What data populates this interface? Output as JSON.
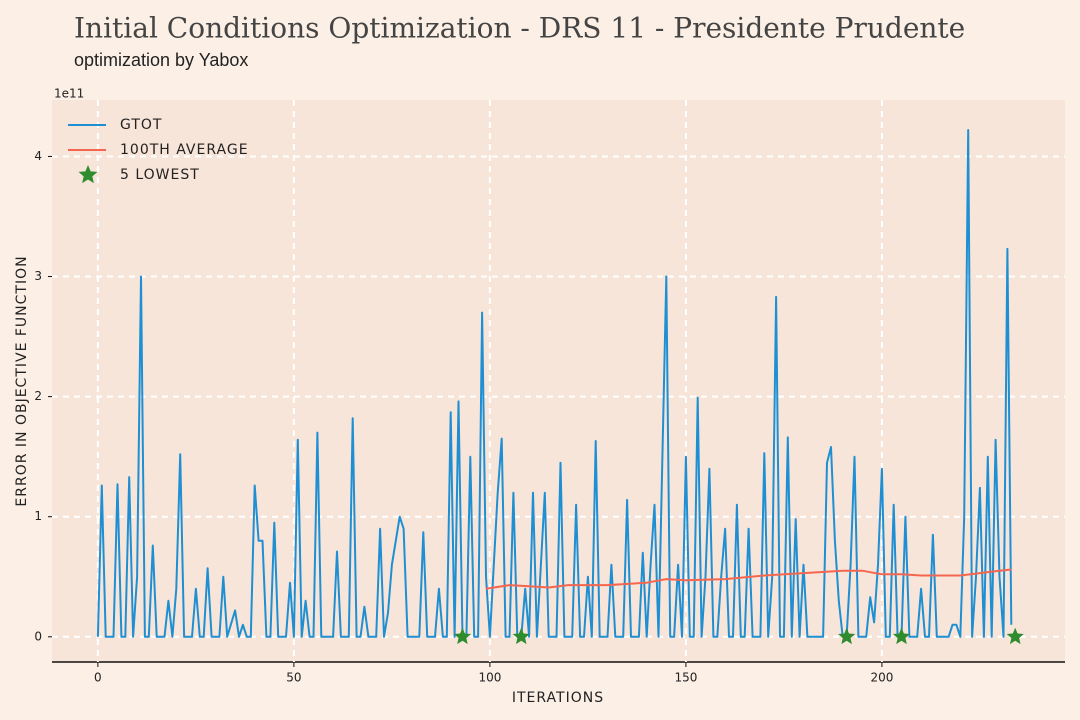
{
  "chart_data": {
    "type": "line",
    "title": "Initial Conditions Optimization - DRS 11 - Presidente Prudente",
    "subtitle": "optimization by Yabox",
    "xlabel": "ITERATIONS",
    "ylabel": "ERROR IN OBJECTIVE FUNCTION",
    "y_offset_label": "1e11",
    "xlim": [
      -11.7,
      246.7
    ],
    "ylim": [
      -0.21,
      4.47
    ],
    "xticks": [
      0,
      50,
      100,
      150,
      200
    ],
    "yticks": [
      0,
      1,
      2,
      3,
      4
    ],
    "grid": true,
    "legend": "upper left",
    "series": [
      {
        "name": "GTOT",
        "color": "#1f8fd3",
        "mode": "line",
        "x": [
          0,
          1,
          2,
          4,
          5,
          6,
          7,
          8,
          9,
          10,
          11,
          12,
          13,
          14,
          15,
          17,
          18,
          19,
          20,
          21,
          22,
          24,
          25,
          26,
          27,
          28,
          29,
          31,
          32,
          33,
          35,
          36,
          37,
          38,
          39,
          40,
          41,
          42,
          43,
          44,
          45,
          46,
          48,
          49,
          50,
          51,
          52,
          53,
          54,
          55,
          56,
          57,
          59,
          60,
          61,
          62,
          64,
          65,
          66,
          67,
          68,
          69,
          71,
          72,
          73,
          74,
          75,
          76,
          77,
          78,
          79,
          82,
          83,
          84,
          86,
          87,
          88,
          89,
          90,
          91,
          92,
          93,
          94,
          95,
          96,
          97,
          98,
          99,
          100,
          101,
          102,
          103,
          104,
          105,
          106,
          107,
          108,
          109,
          110,
          111,
          112,
          113,
          114,
          115,
          117,
          118,
          119,
          121,
          122,
          123,
          124,
          125,
          126,
          127,
          128,
          130,
          131,
          132,
          134,
          135,
          136,
          138,
          139,
          140,
          141,
          142,
          143,
          144,
          145,
          146,
          147,
          148,
          149,
          150,
          151,
          152,
          153,
          154,
          155,
          156,
          157,
          158,
          159,
          160,
          161,
          162,
          163,
          164,
          165,
          166,
          167,
          169,
          170,
          171,
          172,
          173,
          174,
          175,
          176,
          177,
          178,
          179,
          180,
          181,
          185,
          186,
          187,
          188,
          189,
          190,
          191,
          192,
          193,
          194,
          196,
          197,
          198,
          199,
          200,
          201,
          202,
          203,
          204,
          205,
          206,
          207,
          209,
          210,
          211,
          212,
          213,
          214,
          216,
          217,
          218,
          219,
          220,
          221,
          222,
          223,
          224,
          225,
          226,
          227,
          228,
          229,
          230,
          231,
          232,
          233
        ],
        "values": [
          0,
          1.26,
          0,
          0,
          1.27,
          0,
          0,
          1.33,
          0,
          0.5,
          3.0,
          0,
          0,
          0.76,
          0,
          0,
          0.3,
          0,
          0.4,
          1.52,
          0,
          0,
          0.4,
          0,
          0,
          0.57,
          0,
          0,
          0.5,
          0,
          0.22,
          0,
          0.1,
          0,
          0,
          1.26,
          0.8,
          0.8,
          0,
          0,
          0.95,
          0,
          0,
          0.45,
          0,
          1.64,
          0,
          0.3,
          0,
          0,
          1.7,
          0,
          0,
          0,
          0.71,
          0,
          0,
          1.82,
          0,
          0,
          0.25,
          0,
          0,
          0.9,
          0,
          0.2,
          0.6,
          0.8,
          1.0,
          0.9,
          0,
          0,
          0.87,
          0,
          0,
          0.4,
          0,
          0,
          1.87,
          0,
          1.96,
          0,
          0,
          1.5,
          0,
          0,
          2.7,
          0.5,
          0,
          0.6,
          1.2,
          1.65,
          0,
          0,
          1.2,
          0,
          0,
          0.4,
          0,
          1.2,
          0,
          0.6,
          1.2,
          0,
          0,
          1.45,
          0,
          0,
          1.1,
          0,
          0,
          0.5,
          0,
          1.63,
          0,
          0,
          0.6,
          0,
          0,
          1.14,
          0,
          0,
          0.7,
          0,
          0.6,
          1.1,
          0,
          1.5,
          3.0,
          0,
          0,
          0.6,
          0,
          1.5,
          0,
          0,
          1.99,
          0,
          0.5,
          1.4,
          0,
          0,
          0.5,
          0.9,
          0,
          0,
          1.1,
          0,
          0,
          0.9,
          0,
          0,
          1.53,
          0,
          0.5,
          2.83,
          0,
          0,
          1.66,
          0,
          0.98,
          0,
          0.6,
          0,
          0,
          1.45,
          1.58,
          0.8,
          0.3,
          0,
          0,
          0.6,
          1.5,
          0,
          0,
          0.33,
          0.12,
          0.6,
          1.4,
          0,
          0,
          1.1,
          0,
          0,
          1.0,
          0,
          0,
          0.4,
          0,
          0,
          0.85,
          0,
          0,
          0,
          0.1,
          0.1,
          0,
          1.0,
          4.22,
          0,
          0.5,
          1.24,
          0,
          1.5,
          0,
          1.64,
          0.5,
          0,
          3.23,
          0.1
        ]
      },
      {
        "name": "100TH AVERAGE",
        "color": "#f4664f",
        "mode": "line",
        "x": [
          99,
          105,
          110,
          115,
          120,
          130,
          140,
          145,
          150,
          160,
          170,
          180,
          190,
          195,
          200,
          205,
          210,
          220,
          225,
          230,
          233
        ],
        "values": [
          0.4,
          0.43,
          0.42,
          0.41,
          0.43,
          0.43,
          0.45,
          0.48,
          0.47,
          0.48,
          0.51,
          0.53,
          0.55,
          0.55,
          0.52,
          0.52,
          0.51,
          0.51,
          0.53,
          0.55,
          0.56
        ]
      },
      {
        "name": "5 LOWEST",
        "color": "#2e8b2e",
        "mode": "star",
        "x": [
          93,
          108,
          191,
          205,
          234
        ],
        "values": [
          0,
          0,
          0,
          0,
          0
        ]
      }
    ]
  }
}
